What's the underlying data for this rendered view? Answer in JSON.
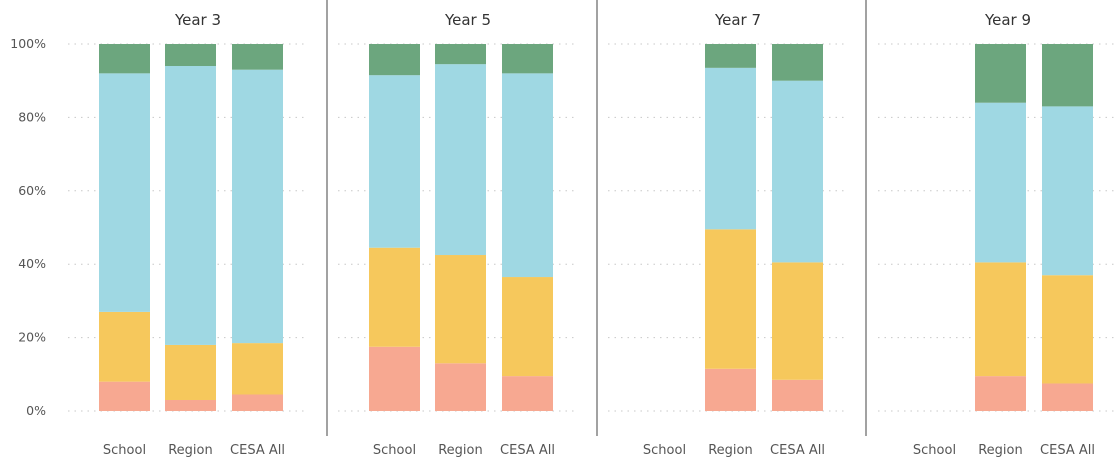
{
  "chart_data": {
    "type": "bar",
    "stacked": "percent",
    "ylim": [
      0,
      100
    ],
    "yticks": [
      "0%",
      "20%",
      "40%",
      "60%",
      "80%",
      "100%"
    ],
    "grid": true,
    "legend": "none",
    "colors": [
      "#f7a891",
      "#f6c85c",
      "#9fd8e3",
      "#6ca67e"
    ],
    "categories": [
      "School",
      "Region",
      "CESA All"
    ],
    "panels": [
      {
        "title": "Year 3",
        "bars": [
          {
            "category": "School",
            "segments": [
              8,
              19,
              65,
              8
            ]
          },
          {
            "category": "Region",
            "segments": [
              3,
              15,
              76,
              6
            ]
          },
          {
            "category": "CESA All",
            "segments": [
              4.5,
              14,
              74.5,
              7
            ]
          }
        ]
      },
      {
        "title": "Year 5",
        "bars": [
          {
            "category": "School",
            "segments": [
              17.5,
              27,
              47,
              8.5
            ]
          },
          {
            "category": "Region",
            "segments": [
              13,
              29.5,
              52,
              5.5
            ]
          },
          {
            "category": "CESA All",
            "segments": [
              9.5,
              27,
              55.5,
              8
            ]
          }
        ]
      },
      {
        "title": "Year 7",
        "bars": [
          {
            "category": "School",
            "segments": [
              0,
              0,
              0,
              0
            ]
          },
          {
            "category": "Region",
            "segments": [
              11.5,
              38,
              44,
              6.5
            ]
          },
          {
            "category": "CESA All",
            "segments": [
              8.5,
              32,
              49.5,
              10
            ]
          }
        ]
      },
      {
        "title": "Year 9",
        "bars": [
          {
            "category": "School",
            "segments": [
              0,
              0,
              0,
              0
            ]
          },
          {
            "category": "Region",
            "segments": [
              9.5,
              31,
              43.5,
              16
            ]
          },
          {
            "category": "CESA All",
            "segments": [
              7.5,
              29.5,
              46,
              17
            ]
          }
        ]
      }
    ]
  }
}
